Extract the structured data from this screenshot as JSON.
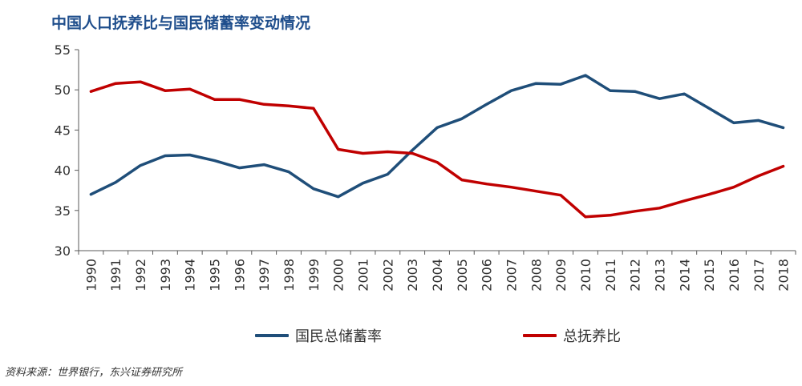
{
  "chart_data": {
    "type": "line",
    "title": "中国人口抚养比与国民储蓄率变动情况",
    "x": [
      "1990",
      "1991",
      "1992",
      "1993",
      "1994",
      "1995",
      "1996",
      "1997",
      "1998",
      "1999",
      "2000",
      "2001",
      "2002",
      "2003",
      "2004",
      "2005",
      "2006",
      "2007",
      "2008",
      "2009",
      "2010",
      "2011",
      "2012",
      "2013",
      "2014",
      "2015",
      "2016",
      "2017",
      "2018"
    ],
    "ylim": [
      30,
      55
    ],
    "yticks": [
      30,
      35,
      40,
      45,
      50,
      55
    ],
    "xlabel": "",
    "ylabel": "",
    "grid": false,
    "legend_position": "bottom",
    "series": [
      {
        "name": "国民总储蓄率",
        "color": "#1f4e79",
        "values": [
          37.0,
          38.5,
          40.6,
          41.8,
          41.9,
          41.2,
          40.3,
          40.7,
          39.8,
          37.7,
          36.7,
          38.4,
          39.5,
          42.5,
          45.3,
          46.4,
          48.2,
          49.9,
          50.8,
          50.7,
          51.8,
          49.9,
          49.8,
          48.9,
          49.5,
          47.7,
          45.9,
          46.2,
          45.3
        ]
      },
      {
        "name": "总抚养比",
        "color": "#c00000",
        "values": [
          49.8,
          50.8,
          51.0,
          49.9,
          50.1,
          48.8,
          48.8,
          48.2,
          48.0,
          47.7,
          42.6,
          42.1,
          42.3,
          42.1,
          41.0,
          38.8,
          38.3,
          37.9,
          37.4,
          36.9,
          34.2,
          34.4,
          34.9,
          35.3,
          36.2,
          37.0,
          37.9,
          39.3,
          40.5
        ]
      }
    ]
  },
  "source": "资料来源：世界银行，东兴证券研究所"
}
